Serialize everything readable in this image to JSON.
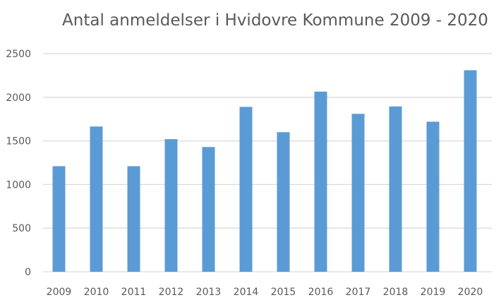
{
  "chart_data": {
    "type": "bar",
    "title": "Antal anmeldelser i Hvidovre Kommune 2009 - 2020",
    "categories": [
      "2009",
      "2010",
      "2011",
      "2012",
      "2013",
      "2014",
      "2015",
      "2016",
      "2017",
      "2018",
      "2019",
      "2020"
    ],
    "values": [
      1210,
      1665,
      1210,
      1520,
      1430,
      1890,
      1600,
      2065,
      1810,
      1895,
      1720,
      2310
    ],
    "xlabel": "",
    "ylabel": "",
    "ylim": [
      0,
      2500
    ],
    "yticks": [
      "0",
      "500",
      "1000",
      "1500",
      "2000",
      "2500"
    ],
    "grid": true,
    "legend": "none",
    "bar_color": "#5B9BD5",
    "grid_color": "#D9D9D9"
  }
}
